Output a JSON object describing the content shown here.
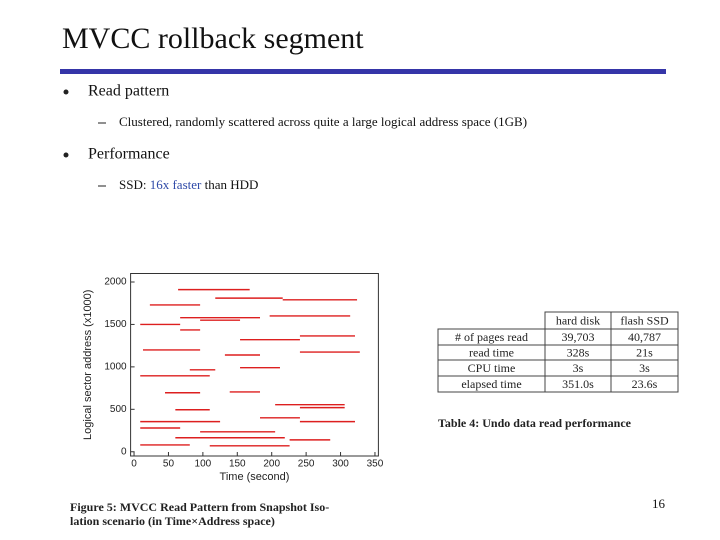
{
  "slide": {
    "title": "MVCC rollback segment",
    "bullets": [
      {
        "text": "Read pattern",
        "sub": "Clustered, randomly scattered across quite a large logical address space (1GB)"
      },
      {
        "text": "Performance",
        "sub_parts": [
          "SSD: ",
          "16x faster",
          " than HDD"
        ]
      }
    ],
    "page_number": "16"
  },
  "chart_data": {
    "type": "segments",
    "xlabel": "Time (second)",
    "ylabel": "Logical sector address (x1000)",
    "caption": [
      "Figure 5: MVCC Read Pattern from Snapshot Iso-",
      "lation scenario (in Time×Address space)"
    ],
    "color": "#dd1f1f",
    "xlim": [
      -5,
      355
    ],
    "ylim": [
      -50,
      2100
    ],
    "xticks": [
      0,
      50,
      100,
      150,
      200,
      250,
      300,
      350
    ],
    "yticks": [
      0,
      500,
      1000,
      1500,
      2000
    ],
    "x_start": [
      64,
      118,
      216,
      23,
      67,
      197,
      9,
      96,
      67,
      154,
      241,
      13,
      132,
      241,
      81,
      154,
      9,
      45,
      139,
      205,
      241,
      60,
      9,
      183,
      241,
      9,
      96,
      60,
      226,
      9,
      110
    ],
    "x_end": [
      168,
      216,
      324,
      96,
      183,
      314,
      67,
      154,
      96,
      241,
      321,
      96,
      183,
      328,
      118,
      212,
      110,
      96,
      183,
      306,
      306,
      110,
      125,
      241,
      321,
      67,
      205,
      219,
      285,
      81,
      226
    ],
    "values": [
      1910,
      1810,
      1790,
      1730,
      1580,
      1600,
      1500,
      1550,
      1435,
      1320,
      1365,
      1200,
      1140,
      1175,
      965,
      990,
      895,
      695,
      705,
      555,
      520,
      495,
      355,
      400,
      355,
      280,
      235,
      165,
      140,
      80,
      70
    ]
  },
  "table": {
    "columns": [
      "hard disk",
      "flash SSD"
    ],
    "rows": [
      [
        "# of pages read",
        "39,703",
        "40,787"
      ],
      [
        "read time",
        "328s",
        "21s"
      ],
      [
        "CPU time",
        "3s",
        "3s"
      ],
      [
        "elapsed time",
        "351.0s",
        "23.6s"
      ]
    ],
    "caption": "Table 4: Undo data read performance"
  }
}
